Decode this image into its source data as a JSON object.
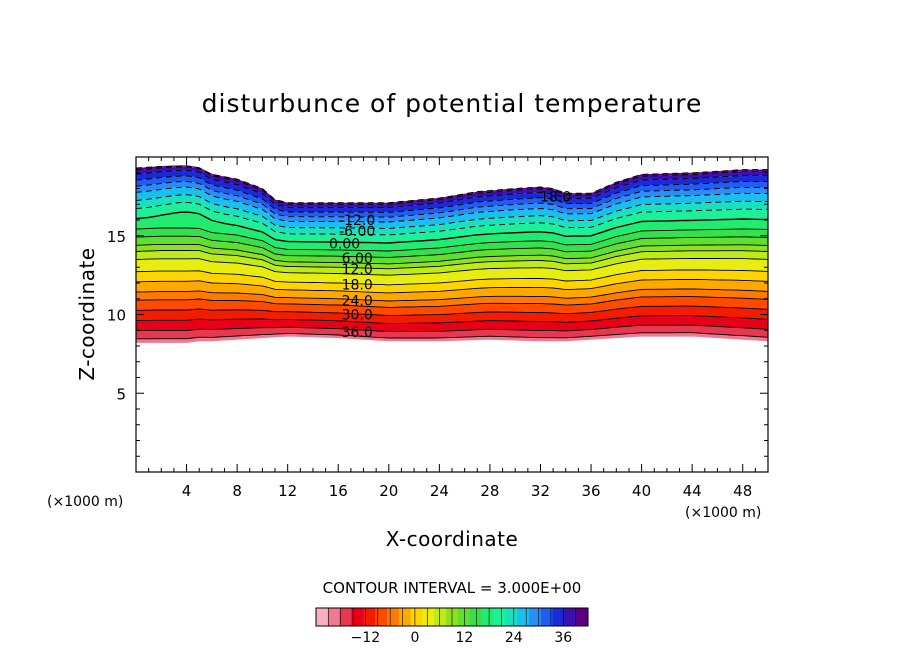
{
  "chart_data": {
    "type": "contour",
    "title": "disturbunce of potential temperature",
    "xlabel": "X-coordinate",
    "ylabel": "Z-coordinate",
    "x_unit_left": "(×1000 m)",
    "x_unit_right": "(×1000 m)",
    "xlim": [
      0,
      50
    ],
    "ylim": [
      0,
      20
    ],
    "xticks": [
      4,
      8,
      12,
      16,
      20,
      24,
      28,
      32,
      36,
      40,
      44,
      48
    ],
    "yticks": [
      5,
      10,
      15
    ],
    "contour_interval_text": "CONTOUR INTERVAL = 3.000E+00",
    "contour_interval": 3.0,
    "value_range": [
      -24,
      42
    ],
    "colorbar": {
      "range": [
        -24,
        42
      ],
      "ticks": [
        -12,
        0,
        12,
        24,
        36
      ],
      "tick_labels": [
        "−12",
        "0",
        "12",
        "24",
        "36"
      ]
    },
    "contour_labels": [
      {
        "text": "-18.0",
        "x": 33.0,
        "z": 17.5
      },
      {
        "text": "-12.0",
        "x": 17.5,
        "z": 16.0
      },
      {
        "text": "-6.00",
        "x": 17.5,
        "z": 15.3
      },
      {
        "text": "0.00",
        "x": 16.5,
        "z": 14.5
      },
      {
        "text": "6.00",
        "x": 17.5,
        "z": 13.6
      },
      {
        "text": "12.0",
        "x": 17.5,
        "z": 12.9
      },
      {
        "text": "18.0",
        "x": 17.5,
        "z": 11.9
      },
      {
        "text": "24.0",
        "x": 17.5,
        "z": 10.9
      },
      {
        "text": "30.0",
        "x": 17.5,
        "z": 10.0
      },
      {
        "text": "36.0",
        "x": 17.5,
        "z": 8.9
      }
    ],
    "upper_boundary": {
      "x": [
        0,
        2,
        4,
        5,
        6,
        8,
        10,
        11,
        12,
        16,
        20,
        24,
        27,
        30,
        32,
        33,
        34,
        36,
        38,
        40,
        44,
        48,
        50
      ],
      "z": [
        19.3,
        19.4,
        19.4,
        19.3,
        18.9,
        18.6,
        18.0,
        17.3,
        17.1,
        17.1,
        17.1,
        17.4,
        17.8,
        18.0,
        18.1,
        18.0,
        17.7,
        17.7,
        18.4,
        18.9,
        19.0,
        19.2,
        19.2
      ]
    },
    "lower_boundary": {
      "x": [
        0,
        2,
        4,
        5,
        6,
        8,
        10,
        12,
        16,
        20,
        24,
        28,
        32,
        34,
        36,
        38,
        40,
        44,
        48,
        50
      ],
      "z": [
        8.2,
        8.2,
        8.2,
        8.3,
        8.3,
        8.4,
        8.5,
        8.6,
        8.5,
        8.3,
        8.3,
        8.4,
        8.3,
        8.3,
        8.4,
        8.5,
        8.6,
        8.6,
        8.4,
        8.3
      ]
    },
    "value_profile_at_flat_region": {
      "value": [
        -24,
        -21,
        -18,
        -15,
        -12,
        -9,
        -6,
        -3,
        0,
        3,
        6,
        9,
        12,
        15,
        18,
        21,
        24,
        27,
        30,
        33,
        36,
        39,
        42
      ],
      "z": [
        17.0,
        16.9,
        16.7,
        16.4,
        16.1,
        15.8,
        15.4,
        15.0,
        14.5,
        14.0,
        13.6,
        13.2,
        12.9,
        12.5,
        11.9,
        11.4,
        10.9,
        10.5,
        10.0,
        9.5,
        9.0,
        8.6,
        8.4
      ]
    },
    "colors": {
      "palette": [
        "#5b0080",
        "#3a10b0",
        "#1a2ad8",
        "#1f5ef0",
        "#2a8ef8",
        "#19c0ee",
        "#1ae0c0",
        "#1ef09a",
        "#22ec70",
        "#35e04a",
        "#5fe030",
        "#8fe020",
        "#bdea18",
        "#e8ec10",
        "#ffd400",
        "#ffa800",
        "#ff7a00",
        "#ff4a00",
        "#f41c00",
        "#e60018",
        "#e83850",
        "#f07890",
        "#f8b0c0"
      ]
    }
  }
}
